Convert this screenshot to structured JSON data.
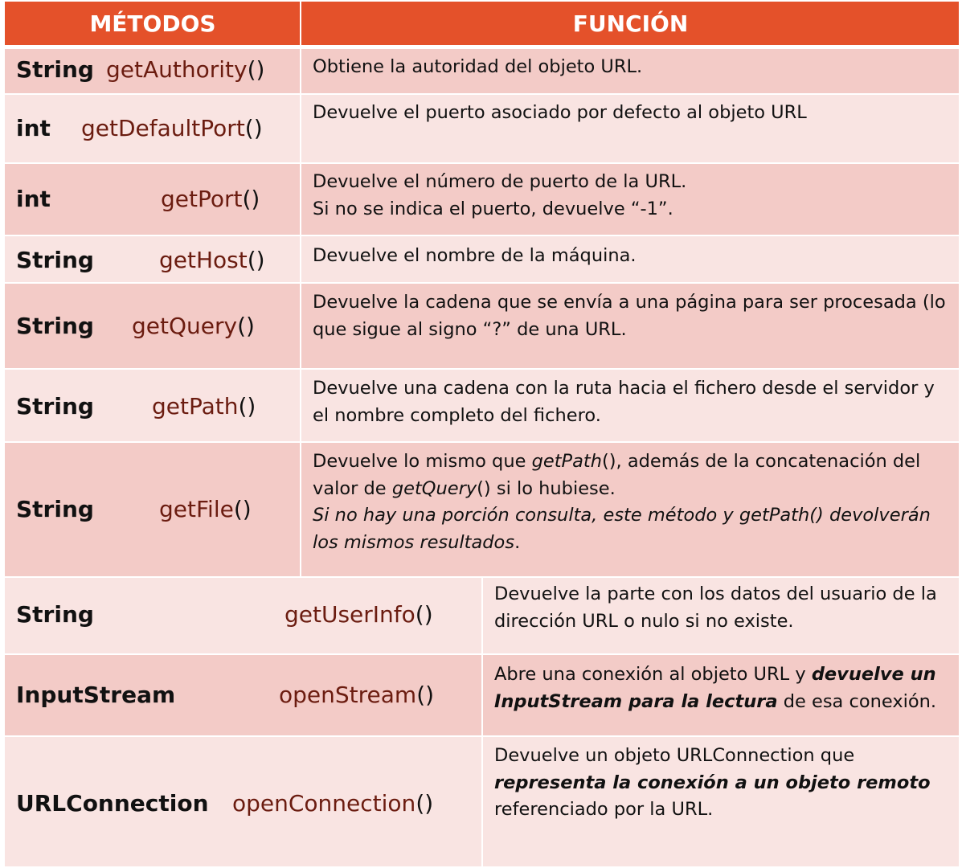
{
  "header": {
    "col_methods": "MÉTODOS",
    "col_function": "FUNCIÓN"
  },
  "rows": [
    {
      "type": "String",
      "method": "getAuthority",
      "parens": "()",
      "desc": [
        "Obtiene la autoridad del objeto URL."
      ]
    },
    {
      "type": "int",
      "method": "getDefaultPort",
      "parens": "()",
      "desc": [
        "Devuelve el puerto asociado por defecto al objeto URL"
      ]
    },
    {
      "type": "int",
      "method": "getPort",
      "parens": "()",
      "desc": [
        "Devuelve el número de puerto de la URL.",
        "Si no se indica el puerto, devuelve “-1”."
      ]
    },
    {
      "type": "String",
      "method": "getHost",
      "parens": "()",
      "desc": [
        "Devuelve el nombre de la máquina."
      ]
    },
    {
      "type": "String",
      "method": "getQuery",
      "parens": "()",
      "desc": [
        "Devuelve la cadena que se envía a una página para ser procesada (lo",
        "que sigue al signo “?” de una URL."
      ]
    },
    {
      "type": "String",
      "method": "getPath",
      "parens": "()",
      "desc": [
        "Devuelve una cadena con la ruta hacia el fichero desde el servidor y",
        "el nombre completo del fichero."
      ]
    },
    {
      "type": "String",
      "method": "getFile",
      "parens": "()",
      "desc_parts": {
        "l1_a": "Devuelve lo mismo que ",
        "l1_b": "getPath",
        "l1_c": "(), además de la concatenación del",
        "l2_a": "valor de ",
        "l2_b": "getQuery",
        "l2_c": "() si lo hubiese.",
        "l3": "Si no hay una porción consulta, este método y getPath() devolverán",
        "l4_a": "los mismos resultados",
        "l4_b": "."
      }
    },
    {
      "type": "String",
      "method": "getUserInfo",
      "parens": "()",
      "desc": [
        "Devuelve la parte con los datos del usuario de la",
        "dirección URL o nulo si no existe."
      ]
    },
    {
      "type": "InputStream",
      "method": "openStream",
      "parens": "()",
      "desc_parts": {
        "l1_a": "Abre una conexión al objeto URL y ",
        "l1_b": "devuelve un",
        "l2_a": "InputStream para la lectura",
        "l2_b": " de esa conexión."
      }
    },
    {
      "type": "URLConnection",
      "method": "openConnection",
      "parens": "()",
      "desc_parts": {
        "l1": "Devuelve un objeto URLConnection que",
        "l2": "representa la conexión a un objeto remoto",
        "l3": "referenciado por la URL."
      }
    }
  ]
}
